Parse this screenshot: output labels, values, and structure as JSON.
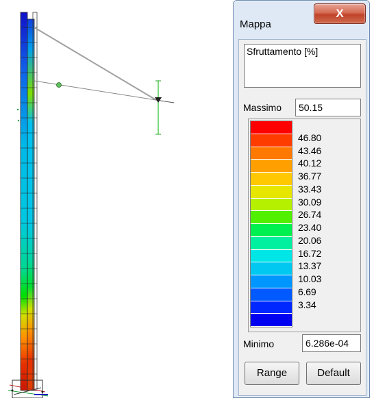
{
  "window": {
    "title": "Mappa",
    "close_label": "X"
  },
  "result": {
    "text": "Sfruttamento [%]"
  },
  "max": {
    "label": "Massimo",
    "value": "50.15"
  },
  "min": {
    "label": "Minimo",
    "value": "6.286e-04"
  },
  "legend": {
    "ticks": [
      "46.80",
      "43.46",
      "40.12",
      "36.77",
      "33.43",
      "30.09",
      "26.74",
      "23.40",
      "20.06",
      "16.72",
      "13.37",
      "10.03",
      "6.69",
      "3.34"
    ],
    "colors": [
      "#ff0000",
      "#ff3c00",
      "#ff7800",
      "#ffa000",
      "#ffc800",
      "#e6e600",
      "#b4f000",
      "#50f000",
      "#00f050",
      "#00f0a0",
      "#00e6e6",
      "#00c8f0",
      "#0096ff",
      "#005aff",
      "#0028ff",
      "#0000f0"
    ]
  },
  "buttons": {
    "range": "Range",
    "default": "Default"
  },
  "model_colors": {
    "column_low": "#e04000",
    "column_mid": "#00e000",
    "column_high": "#1040e0",
    "cable": "#999999"
  }
}
